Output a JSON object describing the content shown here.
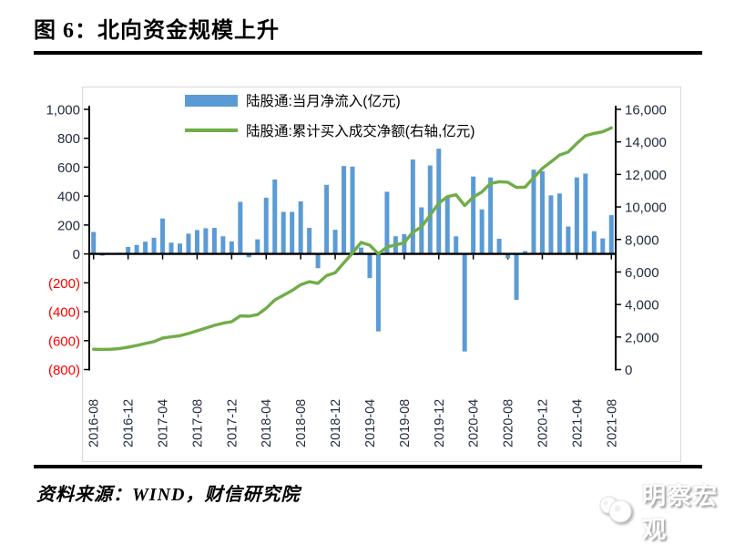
{
  "title": "图 6：北向资金规模上升",
  "source_note": "资料来源：WIND，财信研究院",
  "logo_text": "明察宏观",
  "colors": {
    "bar": "#5B9BD5",
    "line": "#70AD47",
    "axis": "#000000",
    "axis_label": "#232D3F",
    "negative_label": "#FF0000",
    "chart_border": "#D9D9D9"
  },
  "legend": {
    "position": "top",
    "items": [
      {
        "label": "陆股通:当月净流入(亿元)",
        "type": "bar",
        "color": "#5B9BD5"
      },
      {
        "label": "陆股通:累计买入成交净额(右轴,亿元)",
        "type": "line",
        "color": "#70AD47"
      }
    ]
  },
  "chart_data": {
    "type": "bar",
    "subtype": "bar+line dual axis",
    "grid": "off",
    "x": [
      "2016-08",
      "2016-09",
      "2016-10",
      "2016-11",
      "2016-12",
      "2017-01",
      "2017-02",
      "2017-03",
      "2017-04",
      "2017-05",
      "2017-06",
      "2017-07",
      "2017-08",
      "2017-09",
      "2017-10",
      "2017-11",
      "2017-12",
      "2018-01",
      "2018-02",
      "2018-03",
      "2018-04",
      "2018-05",
      "2018-06",
      "2018-07",
      "2018-08",
      "2018-09",
      "2018-10",
      "2018-11",
      "2018-12",
      "2019-01",
      "2019-02",
      "2019-03",
      "2019-04",
      "2019-05",
      "2019-06",
      "2019-07",
      "2019-08",
      "2019-09",
      "2019-10",
      "2019-11",
      "2019-12",
      "2020-01",
      "2020-02",
      "2020-03",
      "2020-04",
      "2020-05",
      "2020-06",
      "2020-07",
      "2020-08",
      "2020-09",
      "2020-10",
      "2020-11",
      "2020-12",
      "2021-01",
      "2021-02",
      "2021-03",
      "2021-04",
      "2021-05",
      "2021-06",
      "2021-07",
      "2021-08"
    ],
    "x_tick_labels": [
      "2016-08",
      "2016-12",
      "2017-04",
      "2017-08",
      "2017-12",
      "2018-04",
      "2018-08",
      "2018-12",
      "2019-04",
      "2019-08",
      "2019-12",
      "2020-04",
      "2020-08",
      "2020-12",
      "2021-04",
      "2021-08"
    ],
    "series": [
      {
        "name": "陆股通:当月净流入(亿元)",
        "type": "bar",
        "axis": "left",
        "color": "#5B9BD5",
        "values": [
          152,
          -12,
          4,
          8,
          48,
          62,
          85,
          112,
          245,
          78,
          72,
          140,
          165,
          178,
          180,
          122,
          87,
          360,
          -23,
          101,
          389,
          515,
          291,
          291,
          364,
          180,
          -99,
          478,
          167,
          608,
          604,
          44,
          -167,
          -536,
          430,
          122,
          136,
          653,
          322,
          612,
          728,
          401,
          122,
          -675,
          535,
          308,
          529,
          105,
          -29,
          -318,
          20,
          583,
          572,
          405,
          418,
          190,
          529,
          556,
          157,
          107,
          268
        ]
      },
      {
        "name": "陆股通:累计买入成交净额(右轴,亿元)",
        "type": "line",
        "axis": "right",
        "color": "#70AD47",
        "values": [
          1250,
          1240,
          1250,
          1290,
          1380,
          1480,
          1600,
          1720,
          1940,
          2010,
          2080,
          2220,
          2380,
          2550,
          2720,
          2850,
          2940,
          3300,
          3280,
          3380,
          3770,
          4280,
          4570,
          4860,
          5220,
          5400,
          5300,
          5780,
          5950,
          6560,
          7160,
          7820,
          7650,
          7110,
          7540,
          7660,
          7800,
          8450,
          8770,
          9500,
          10230,
          10630,
          10750,
          10080,
          10610,
          10920,
          11450,
          11550,
          11520,
          11200,
          11220,
          11800,
          12370,
          12770,
          13190,
          13380,
          13910,
          14380,
          14520,
          14620,
          14860
        ]
      }
    ],
    "left_axis": {
      "range": [
        -800,
        1000
      ],
      "tick_step": 200,
      "ticks": [
        "1,000",
        "800",
        "600",
        "400",
        "200",
        "0",
        "(200)",
        "(400)",
        "(600)",
        "(800)"
      ],
      "negative_style": "red parentheses"
    },
    "right_axis": {
      "range": [
        0,
        16000
      ],
      "tick_step": 2000,
      "ticks": [
        "16,000",
        "14,000",
        "12,000",
        "10,000",
        "8,000",
        "6,000",
        "4,000",
        "2,000",
        "0"
      ]
    }
  }
}
